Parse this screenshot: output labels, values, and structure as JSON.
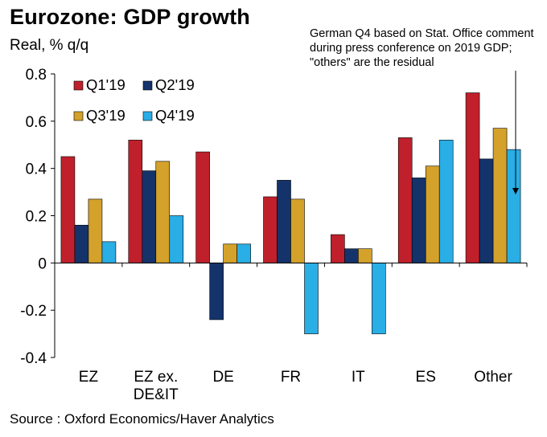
{
  "header": {
    "title": "Eurozone: GDP growth",
    "subtitle": "Real, % q/q"
  },
  "annotation": {
    "text": "German Q4 based on Stat. Office comment during press conference on 2019 GDP; \"others\" are the residual"
  },
  "footer": {
    "source": "Source : Oxford Economics/Haver Analytics"
  },
  "chart_data": {
    "type": "bar",
    "title": "Eurozone: GDP growth",
    "ylabel": "Real, % q/q",
    "xlabel": "",
    "ylim": [
      -0.4,
      0.8
    ],
    "yticks": [
      0.8,
      0.6,
      0.4,
      0.2,
      0,
      -0.2,
      -0.4
    ],
    "ytick_labels": [
      "0.8",
      "0.6",
      "0.4",
      "0.2",
      "0",
      "-0.2",
      "-0.4"
    ],
    "grid": false,
    "legend_position": "top-left",
    "categories": [
      "EZ",
      "EZ ex. DE&IT",
      "DE",
      "FR",
      "IT",
      "ES",
      "Other"
    ],
    "category_lines": [
      [
        "EZ"
      ],
      [
        "EZ ex.",
        "DE&IT"
      ],
      [
        "DE"
      ],
      [
        "FR"
      ],
      [
        "IT"
      ],
      [
        "ES"
      ],
      [
        "Other"
      ]
    ],
    "series": [
      {
        "name": "Q1'19",
        "color": "#C0202B",
        "values": [
          0.45,
          0.52,
          0.47,
          0.28,
          0.12,
          0.53,
          0.72
        ]
      },
      {
        "name": "Q2'19",
        "color": "#14336B",
        "values": [
          0.16,
          0.39,
          -0.24,
          0.35,
          0.06,
          0.36,
          0.44
        ]
      },
      {
        "name": "Q3'19",
        "color": "#D4A22A",
        "values": [
          0.27,
          0.43,
          0.08,
          0.27,
          0.06,
          0.41,
          0.57
        ]
      },
      {
        "name": "Q4'19",
        "color": "#29AEE6",
        "values": [
          0.09,
          0.2,
          0.08,
          -0.3,
          -0.3,
          0.52,
          0.48
        ]
      }
    ]
  }
}
